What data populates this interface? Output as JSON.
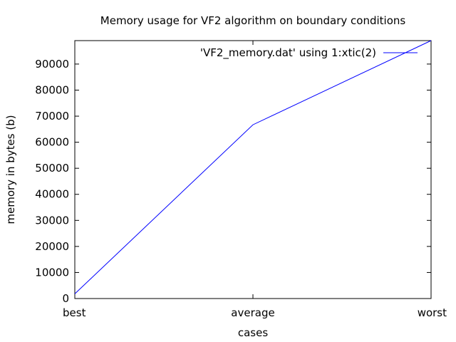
{
  "chart_data": {
    "type": "line",
    "title": "Memory usage for VF2 algorithm on boundary conditions",
    "xlabel": "cases",
    "ylabel": "memory in bytes (b)",
    "categories": [
      "best",
      "average",
      "worst"
    ],
    "ylim": [
      0,
      99000
    ],
    "yticks": [
      0,
      10000,
      20000,
      30000,
      40000,
      50000,
      60000,
      70000,
      80000,
      90000
    ],
    "ytick_labels": [
      "0",
      "10000",
      "20000",
      "30000",
      "40000",
      "50000",
      "60000",
      "70000",
      "80000",
      "90000"
    ],
    "grid": false,
    "legend_position": "top-right",
    "series": [
      {
        "name": "'VF2_memory.dat' using 1:xtic(2)",
        "values": [
          1800,
          66700,
          99000
        ],
        "color": "#0000ff"
      }
    ]
  }
}
